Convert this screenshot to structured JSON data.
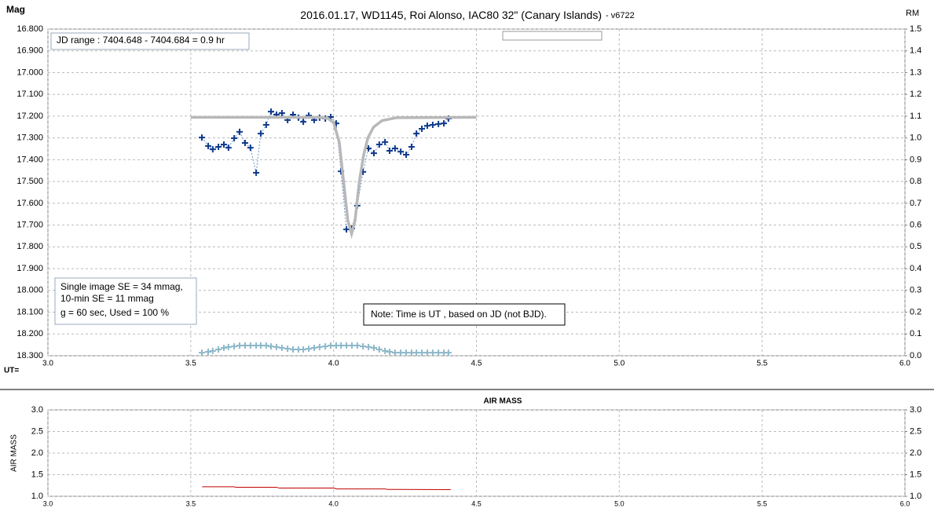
{
  "chart_data": [
    {
      "type": "line",
      "title": "2016.01.17,  WD1145, Roi Alonso,  IAC80 32\" (Canary Islands)",
      "subtitle": "- v6722",
      "y_label": "Mag",
      "y2_label": "RM",
      "x_label": "UT=",
      "annotations": [
        "JD range  : 7404.648  - 7404.684  = 0.9 hr",
        "Single image SE = 34 mmag,",
        "10-min SE = 11 mmag",
        "g = 60 sec, Used = 100 %",
        "Note: Time is UT , based on JD (not BJD)."
      ],
      "grid": true,
      "xlim": [
        3.0,
        6.0
      ],
      "xticks": [
        {
          "value": 3,
          "label": "3.0"
        },
        3.5,
        {
          "value": 4,
          "label": "4.0"
        },
        4.5,
        {
          "value": 5,
          "label": "5.0"
        },
        5.5,
        {
          "value": 6,
          "label": "6.0"
        }
      ],
      "ylim": [
        18.3,
        16.8
      ],
      "yticks": [
        {
          "value": 16.8,
          "label": "16.800"
        },
        {
          "value": 16.9,
          "label": "16.900"
        },
        {
          "value": 17.0,
          "label": "17.000"
        },
        {
          "value": 17.1,
          "label": "17.100"
        },
        {
          "value": 17.2,
          "label": "17.200"
        },
        {
          "value": 17.3,
          "label": "17.300"
        },
        {
          "value": 17.4,
          "label": "17.400"
        },
        {
          "value": 17.5,
          "label": "17.500"
        },
        {
          "value": 17.6,
          "label": "17.600"
        },
        {
          "value": 17.7,
          "label": "17.700"
        },
        {
          "value": 17.8,
          "label": "17.800"
        },
        {
          "value": 17.9,
          "label": "17.900"
        },
        {
          "value": 18.0,
          "label": "18.000"
        },
        {
          "value": 18.1,
          "label": "18.100"
        },
        {
          "value": 18.2,
          "label": "18.200"
        },
        {
          "value": 18.3,
          "label": "18.300"
        }
      ],
      "y2lim": [
        0.0,
        1.5
      ],
      "y2ticks": [
        {
          "value": 1.5,
          "label": "1.5"
        },
        1.4,
        1.3,
        1.2,
        1.1,
        {
          "value": 1.0,
          "label": "1.0"
        },
        0.9,
        0.8,
        0.7,
        0.6,
        0.5,
        0.4,
        0.3,
        0.2,
        0.1,
        {
          "value": 0,
          "label": "0.0"
        }
      ],
      "x": [
        3.539,
        3.561,
        3.577,
        3.597,
        3.616,
        3.632,
        3.652,
        3.671,
        3.69,
        3.709,
        3.729,
        3.745,
        3.764,
        3.781,
        3.8,
        3.819,
        3.839,
        3.858,
        3.877,
        3.894,
        3.913,
        3.932,
        3.951,
        3.971,
        3.99,
        4.009,
        4.026,
        4.045,
        4.064,
        4.083,
        4.103,
        4.122,
        4.141,
        4.16,
        4.18,
        4.196,
        4.215,
        4.235,
        4.254,
        4.273,
        4.29,
        4.309,
        4.328,
        4.347,
        4.367,
        4.386,
        4.402
      ],
      "series": [
        {
          "color": "#0f3a8c",
          "line_color": "#6b8fd0",
          "marker": "plus",
          "line_width": 1,
          "dash": "2,2",
          "values": [
            17.298,
            17.337,
            17.352,
            17.341,
            17.33,
            17.345,
            17.301,
            17.272,
            17.323,
            17.345,
            17.46,
            17.28,
            17.24,
            17.179,
            17.193,
            17.186,
            17.218,
            17.193,
            17.207,
            17.226,
            17.197,
            17.218,
            17.207,
            17.211,
            17.204,
            17.233,
            17.453,
            17.72,
            17.716,
            17.611,
            17.456,
            17.348,
            17.37,
            17.33,
            17.319,
            17.359,
            17.348,
            17.363,
            17.377,
            17.341,
            17.28,
            17.258,
            17.244,
            17.24,
            17.236,
            17.233,
            17.211
          ]
        },
        {
          "color": "#b8b8b8",
          "line_width": 3.5,
          "x": [
            3.5,
            3.95,
            3.98,
            4.0,
            4.02,
            4.035,
            4.05,
            4.063,
            4.075,
            4.09,
            4.105,
            4.12,
            4.14,
            4.17,
            4.22,
            4.5
          ],
          "values": [
            17.205,
            17.205,
            17.21,
            17.23,
            17.32,
            17.5,
            17.68,
            17.74,
            17.68,
            17.5,
            17.38,
            17.3,
            17.25,
            17.22,
            17.207,
            17.205
          ]
        },
        {
          "color": "#8db8c9",
          "marker": "plus",
          "axis": "y2",
          "values": [
            0.014,
            0.018,
            0.022,
            0.029,
            0.036,
            0.04,
            0.043,
            0.047,
            0.047,
            0.047,
            0.047,
            0.047,
            0.047,
            0.043,
            0.04,
            0.036,
            0.032,
            0.029,
            0.029,
            0.029,
            0.032,
            0.036,
            0.04,
            0.043,
            0.047,
            0.047,
            0.047,
            0.047,
            0.047,
            0.047,
            0.043,
            0.04,
            0.036,
            0.029,
            0.022,
            0.018,
            0.014,
            0.014,
            0.014,
            0.014,
            0.014,
            0.014,
            0.014,
            0.014,
            0.014,
            0.014,
            0.014
          ]
        }
      ]
    },
    {
      "type": "line",
      "title": "AIR MASS",
      "y_label": "AIR MASS",
      "grid": true,
      "xlim": [
        3.0,
        6.0
      ],
      "xticks": [
        {
          "value": 3,
          "label": "3.0"
        },
        3.5,
        {
          "value": 4,
          "label": "4.0"
        },
        4.5,
        {
          "value": 5,
          "label": "5.0"
        },
        5.5,
        {
          "value": 6,
          "label": "6.0"
        }
      ],
      "ylim": [
        1.0,
        3.0
      ],
      "yticks": [
        {
          "value": 1,
          "label": "1.0"
        },
        1.5,
        {
          "value": 2,
          "label": "2.0"
        },
        2.5,
        {
          "value": 3,
          "label": "3.0"
        }
      ],
      "y2lim": [
        1.0,
        3.0
      ],
      "y2ticks": [
        {
          "value": 1,
          "label": "1.0"
        },
        1.5,
        {
          "value": 2,
          "label": "2.0"
        },
        2.5,
        {
          "value": 3,
          "label": "3.0"
        }
      ],
      "series": [
        {
          "color": "#c00000",
          "line_width": 1,
          "x": [
            3.54,
            3.65,
            3.66,
            3.8,
            3.81,
            4.0,
            4.01,
            4.18,
            4.19,
            4.41
          ],
          "values": [
            1.22,
            1.22,
            1.21,
            1.21,
            1.19,
            1.19,
            1.17,
            1.17,
            1.16,
            1.155
          ]
        }
      ]
    }
  ]
}
